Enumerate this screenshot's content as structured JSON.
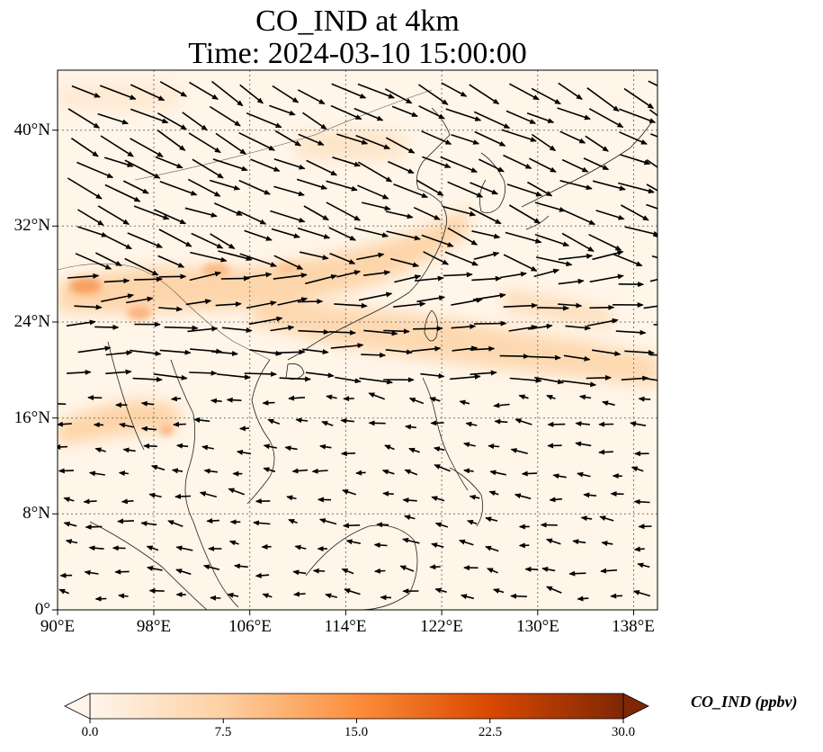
{
  "title": "CO_IND at 4km",
  "subtitle": "Time: 2024-03-10 15:00:00",
  "map": {
    "lon_range": [
      90,
      140
    ],
    "lat_range": [
      0,
      45
    ],
    "lon_ticks": [
      "90°E",
      "98°E",
      "106°E",
      "114°E",
      "122°E",
      "130°E",
      "138°E"
    ],
    "lat_ticks": [
      "0°",
      "8°N",
      "16°N",
      "24°N",
      "32°N",
      "40°N"
    ],
    "gridlines": true,
    "field_colormap": "orange-red sequential",
    "overlay": "wind vectors"
  },
  "colorbar": {
    "label": "CO_IND (ppbv)",
    "ticks": [
      "0.0",
      "7.5",
      "15.0",
      "22.5",
      "30.0"
    ],
    "min": 0,
    "max": 30,
    "extend": "both",
    "colors": [
      "#fff5eb",
      "#fdd0a2",
      "#fd8d3c",
      "#d94801",
      "#7f2704"
    ]
  }
}
